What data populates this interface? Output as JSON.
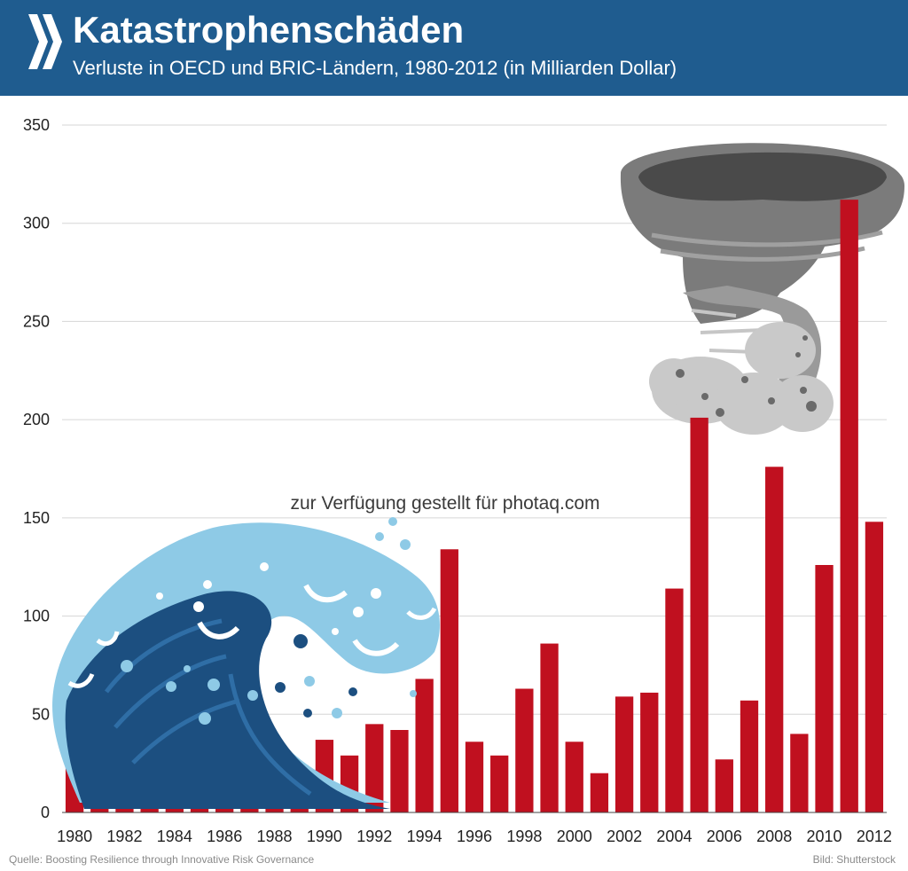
{
  "header": {
    "title": "Katastrophenschäden",
    "subtitle": "Verluste in OECD und BRIC-Ländern, 1980-2012 (in Milliarden Dollar)",
    "background_color": "#1f5c8f",
    "logo_icon": "oecd-chevron-logo"
  },
  "watermark": "zur Verfügung gestellt für photaq.com",
  "footer": {
    "source": "Quelle: Boosting Resilience through Innovative Risk Governance",
    "credit": "Bild: Shutterstock"
  },
  "illustrations": [
    "tsunami-wave-icon",
    "tornado-icon"
  ],
  "chart_data": {
    "type": "bar",
    "title": "Katastrophenschäden",
    "subtitle": "Verluste in OECD und BRIC-Ländern, 1980-2012 (in Milliarden Dollar)",
    "xlabel": "",
    "ylabel": "",
    "ylim": [
      0,
      350
    ],
    "y_ticks": [
      0,
      50,
      100,
      150,
      200,
      250,
      300,
      350
    ],
    "x_tick_labels": [
      "1980",
      "1982",
      "1984",
      "1986",
      "1988",
      "1990",
      "1992",
      "1994",
      "1996",
      "1998",
      "2000",
      "2002",
      "2004",
      "2006",
      "2008",
      "2010",
      "2012"
    ],
    "grid": "horizontal",
    "bar_color": "#c0101f",
    "categories": [
      "1980",
      "1981",
      "1982",
      "1983",
      "1984",
      "1985",
      "1986",
      "1987",
      "1988",
      "1989",
      "1990",
      "1991",
      "1992",
      "1993",
      "1994",
      "1995",
      "1996",
      "1997",
      "1998",
      "1999",
      "2000",
      "2001",
      "2002",
      "2003",
      "2004",
      "2005",
      "2006",
      "2007",
      "2008",
      "2009",
      "2010",
      "2011",
      "2012"
    ],
    "values": [
      26,
      12,
      6,
      11,
      7,
      13,
      9,
      9.5,
      8,
      24,
      37,
      29,
      45,
      42,
      68,
      134,
      36,
      29,
      63,
      86,
      36,
      20,
      59,
      61,
      114,
      201,
      27,
      57,
      176,
      40,
      126,
      312,
      148
    ]
  }
}
